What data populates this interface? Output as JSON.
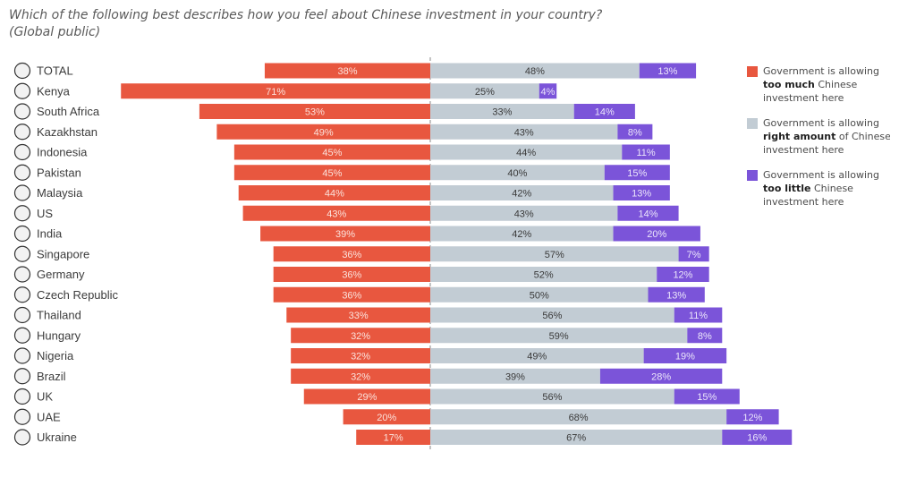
{
  "title": {
    "line1": "Which of the following best describes how you feel about Chinese investment in your country?",
    "line2": "(Global public)"
  },
  "legend": [
    {
      "pre": "Government is allowing",
      "bold": "too much",
      "post": " Chinese",
      "line3": "investment here",
      "color": "#e8573f"
    },
    {
      "pre": "Government is allowing",
      "bold": "right amount",
      "post": " of Chinese",
      "line3": "investment here",
      "color": "#c2ccd4"
    },
    {
      "pre": "Government is allowing",
      "bold": "too little",
      "post": " Chinese",
      "line3": "investment here",
      "color": "#7b54d9"
    }
  ],
  "chart_data": {
    "type": "bar",
    "orientation": "horizontal",
    "stacking": "diverging",
    "categories": [
      "TOTAL",
      "Kenya",
      "South Africa",
      "Kazakhstan",
      "Indonesia",
      "Pakistan",
      "Malaysia",
      "US",
      "India",
      "Singapore",
      "Germany",
      "Czech Republic",
      "Thailand",
      "Hungary",
      "Nigeria",
      "Brazil",
      "UK",
      "UAE",
      "Ukraine"
    ],
    "series": [
      {
        "name": "too much",
        "color": "#e8573f",
        "values": [
          38,
          71,
          53,
          49,
          45,
          45,
          44,
          43,
          39,
          36,
          36,
          36,
          33,
          32,
          32,
          32,
          29,
          20,
          17
        ]
      },
      {
        "name": "right amount",
        "color": "#c2ccd4",
        "values": [
          48,
          25,
          33,
          43,
          44,
          40,
          42,
          43,
          42,
          57,
          52,
          50,
          56,
          59,
          49,
          39,
          56,
          68,
          67
        ]
      },
      {
        "name": "too little",
        "color": "#7b54d9",
        "values": [
          13,
          4,
          14,
          8,
          11,
          15,
          13,
          14,
          20,
          7,
          12,
          13,
          11,
          8,
          19,
          28,
          15,
          12,
          16
        ]
      }
    ],
    "labels": [
      "38%",
      "71%",
      "53%",
      "49%",
      "45%",
      "45%",
      "44%",
      "43%",
      "39%",
      "36%",
      "36%",
      "36%",
      "33%",
      "32%",
      "32%",
      "32%",
      "29%",
      "20%",
      "17%",
      "48%",
      "25%",
      "33%",
      "43%",
      "44%",
      "40%",
      "42%",
      "43%",
      "42%",
      "57%",
      "52%",
      "50%",
      "56%",
      "59%",
      "49%",
      "39%",
      "56%",
      "68%",
      "67%",
      "13%",
      "4%",
      "14%",
      "8%",
      "11%",
      "15%",
      "13%",
      "14%",
      "20%",
      "7%",
      "12%",
      "13%",
      "11%",
      "8%",
      "19%",
      "28%",
      "15%",
      "12%",
      "16%"
    ],
    "gridlines": false,
    "center_line": "dashed",
    "legend_position": "right"
  }
}
